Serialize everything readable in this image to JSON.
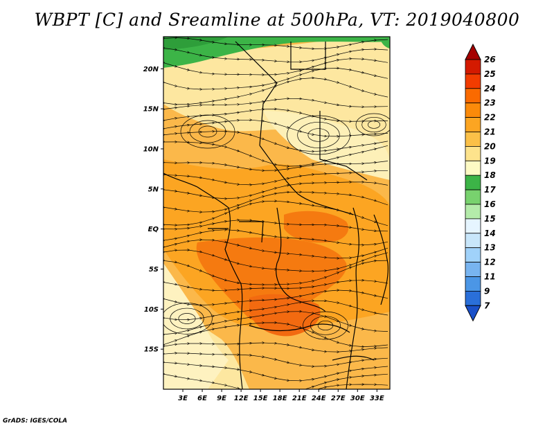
{
  "title": "WBPT [C] and Sreamline at 500hPa, VT: 2019040800",
  "credit": "GrADS: IGES/COLA",
  "map": {
    "lon_range": [
      0,
      35
    ],
    "lat_range": [
      -20,
      24
    ],
    "lat_ticks": [
      {
        "value": 20,
        "label": "20N"
      },
      {
        "value": 15,
        "label": "15N"
      },
      {
        "value": 10,
        "label": "10N"
      },
      {
        "value": 5,
        "label": "5N"
      },
      {
        "value": 0,
        "label": "EQ"
      },
      {
        "value": -5,
        "label": "5S"
      },
      {
        "value": -10,
        "label": "10S"
      },
      {
        "value": -15,
        "label": "15S"
      }
    ],
    "lon_ticks": [
      {
        "value": 3,
        "label": "3E"
      },
      {
        "value": 6,
        "label": "6E"
      },
      {
        "value": 9,
        "label": "9E"
      },
      {
        "value": 12,
        "label": "12E"
      },
      {
        "value": 15,
        "label": "15E"
      },
      {
        "value": 18,
        "label": "18E"
      },
      {
        "value": 21,
        "label": "21E"
      },
      {
        "value": 24,
        "label": "24E"
      },
      {
        "value": 27,
        "label": "27E"
      },
      {
        "value": 30,
        "label": "30E"
      },
      {
        "value": 33,
        "label": "33E"
      }
    ]
  },
  "colorbar": {
    "levels": [
      "26",
      "25",
      "24",
      "23",
      "22",
      "21",
      "20",
      "19",
      "18",
      "17",
      "16",
      "15",
      "14",
      "13",
      "12",
      "11",
      "9",
      "7"
    ],
    "colors": [
      "#a50000",
      "#d41a00",
      "#f23c00",
      "#fa6a00",
      "#fb8a0a",
      "#fca522",
      "#fbc048",
      "#fde38c",
      "#fdfac4",
      "#3cb447",
      "#78d26e",
      "#b4ebaa",
      "#e6f5ff",
      "#c8e6fa",
      "#a0d2fa",
      "#78b4f0",
      "#4b96e6",
      "#2a6fd9",
      "#1a50c8"
    ]
  },
  "field_regions": [
    {
      "name": "green-north",
      "color": "#3cb447"
    },
    {
      "name": "light-yellow",
      "color": "#fde38c"
    },
    {
      "name": "orange-belt",
      "color": "#fca522"
    },
    {
      "name": "dark-orange-core",
      "color": "#f26a10"
    }
  ]
}
